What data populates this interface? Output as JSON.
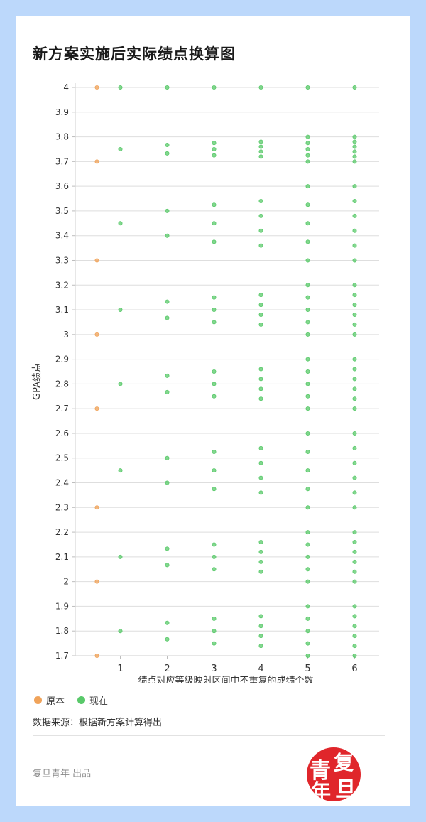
{
  "title": "新方案实施后实际绩点换算图",
  "source": "数据来源：根据新方案计算得出",
  "credit": "复旦青年 出品",
  "seal": {
    "chars": [
      "青",
      "复",
      "年",
      "旦"
    ]
  },
  "colors": {
    "original": "#f0a35a",
    "current": "#59c96a",
    "background": "#bcd8fb"
  },
  "legend": {
    "original_label": "原本",
    "current_label": "现在"
  },
  "chart_data": {
    "type": "scatter",
    "title": "新方案实施后实际绩点换算图",
    "xlabel": "绩点对应等级映射区间中不重复的成绩个数",
    "ylabel": "GPA绩点",
    "xlim": [
      0,
      6
    ],
    "ylim": [
      1.7,
      4.0
    ],
    "x_ticks": [
      1,
      2,
      3,
      4,
      5,
      6
    ],
    "y_ticks": [
      "4",
      "3.9",
      "3.8",
      "3.7",
      "3.6",
      "3.5",
      "3.4",
      "3.3",
      "3.2",
      "3.1",
      "3",
      "2.9",
      "2.8",
      "2.7",
      "2.6",
      "2.5",
      "2.4",
      "2.3",
      "2.2",
      "2.1",
      "2",
      "1.9",
      "1.8",
      "1.7"
    ],
    "grid": true,
    "legend_position": "bottom-left",
    "series": [
      {
        "name": "原本",
        "color": "#f0a35a",
        "points": [
          [
            0.5,
            4.0
          ],
          [
            0.5,
            3.7
          ],
          [
            0.5,
            3.3
          ],
          [
            0.5,
            3.0
          ],
          [
            0.5,
            2.7
          ],
          [
            0.5,
            2.3
          ],
          [
            0.5,
            2.0
          ],
          [
            0.5,
            1.7
          ]
        ]
      },
      {
        "name": "现在",
        "color": "#59c96a",
        "points": [
          [
            1,
            4.0
          ],
          [
            1,
            3.75
          ],
          [
            1,
            3.45
          ],
          [
            1,
            3.1
          ],
          [
            1,
            2.8
          ],
          [
            1,
            2.45
          ],
          [
            1,
            2.1
          ],
          [
            1,
            1.8
          ],
          [
            2,
            4.0
          ],
          [
            2,
            3.767
          ],
          [
            2,
            3.733
          ],
          [
            2,
            3.5
          ],
          [
            2,
            3.4
          ],
          [
            2,
            3.133
          ],
          [
            2,
            3.067
          ],
          [
            2,
            2.833
          ],
          [
            2,
            2.767
          ],
          [
            2,
            2.5
          ],
          [
            2,
            2.4
          ],
          [
            2,
            2.133
          ],
          [
            2,
            2.067
          ],
          [
            2,
            1.833
          ],
          [
            2,
            1.767
          ],
          [
            3,
            4.0
          ],
          [
            3,
            3.775
          ],
          [
            3,
            3.75
          ],
          [
            3,
            3.725
          ],
          [
            3,
            3.525
          ],
          [
            3,
            3.45
          ],
          [
            3,
            3.375
          ],
          [
            3,
            3.15
          ],
          [
            3,
            3.1
          ],
          [
            3,
            3.05
          ],
          [
            3,
            2.85
          ],
          [
            3,
            2.8
          ],
          [
            3,
            2.75
          ],
          [
            3,
            2.525
          ],
          [
            3,
            2.45
          ],
          [
            3,
            2.375
          ],
          [
            3,
            2.15
          ],
          [
            3,
            2.1
          ],
          [
            3,
            2.05
          ],
          [
            3,
            1.85
          ],
          [
            3,
            1.8
          ],
          [
            3,
            1.75
          ],
          [
            4,
            4.0
          ],
          [
            4,
            3.78
          ],
          [
            4,
            3.76
          ],
          [
            4,
            3.74
          ],
          [
            4,
            3.72
          ],
          [
            4,
            3.54
          ],
          [
            4,
            3.48
          ],
          [
            4,
            3.42
          ],
          [
            4,
            3.36
          ],
          [
            4,
            3.16
          ],
          [
            4,
            3.12
          ],
          [
            4,
            3.08
          ],
          [
            4,
            3.04
          ],
          [
            4,
            2.86
          ],
          [
            4,
            2.82
          ],
          [
            4,
            2.78
          ],
          [
            4,
            2.74
          ],
          [
            4,
            2.54
          ],
          [
            4,
            2.48
          ],
          [
            4,
            2.42
          ],
          [
            4,
            2.36
          ],
          [
            4,
            2.16
          ],
          [
            4,
            2.12
          ],
          [
            4,
            2.08
          ],
          [
            4,
            2.04
          ],
          [
            4,
            1.86
          ],
          [
            4,
            1.82
          ],
          [
            4,
            1.78
          ],
          [
            4,
            1.74
          ],
          [
            5,
            4.0
          ],
          [
            5,
            3.8
          ],
          [
            5,
            3.775
          ],
          [
            5,
            3.75
          ],
          [
            5,
            3.725
          ],
          [
            5,
            3.7
          ],
          [
            5,
            3.6
          ],
          [
            5,
            3.525
          ],
          [
            5,
            3.45
          ],
          [
            5,
            3.375
          ],
          [
            5,
            3.3
          ],
          [
            5,
            3.2
          ],
          [
            5,
            3.15
          ],
          [
            5,
            3.1
          ],
          [
            5,
            3.05
          ],
          [
            5,
            3.0
          ],
          [
            5,
            2.9
          ],
          [
            5,
            2.85
          ],
          [
            5,
            2.8
          ],
          [
            5,
            2.75
          ],
          [
            5,
            2.7
          ],
          [
            5,
            2.6
          ],
          [
            5,
            2.525
          ],
          [
            5,
            2.45
          ],
          [
            5,
            2.375
          ],
          [
            5,
            2.3
          ],
          [
            5,
            2.2
          ],
          [
            5,
            2.15
          ],
          [
            5,
            2.1
          ],
          [
            5,
            2.05
          ],
          [
            5,
            2.0
          ],
          [
            5,
            1.9
          ],
          [
            5,
            1.85
          ],
          [
            5,
            1.8
          ],
          [
            5,
            1.75
          ],
          [
            5,
            1.7
          ],
          [
            6,
            4.0
          ],
          [
            6,
            3.8
          ],
          [
            6,
            3.78
          ],
          [
            6,
            3.76
          ],
          [
            6,
            3.74
          ],
          [
            6,
            3.72
          ],
          [
            6,
            3.7
          ],
          [
            6,
            3.6
          ],
          [
            6,
            3.54
          ],
          [
            6,
            3.48
          ],
          [
            6,
            3.42
          ],
          [
            6,
            3.36
          ],
          [
            6,
            3.3
          ],
          [
            6,
            3.2
          ],
          [
            6,
            3.16
          ],
          [
            6,
            3.12
          ],
          [
            6,
            3.08
          ],
          [
            6,
            3.04
          ],
          [
            6,
            3.0
          ],
          [
            6,
            2.9
          ],
          [
            6,
            2.86
          ],
          [
            6,
            2.82
          ],
          [
            6,
            2.78
          ],
          [
            6,
            2.74
          ],
          [
            6,
            2.7
          ],
          [
            6,
            2.6
          ],
          [
            6,
            2.54
          ],
          [
            6,
            2.48
          ],
          [
            6,
            2.42
          ],
          [
            6,
            2.36
          ],
          [
            6,
            2.3
          ],
          [
            6,
            2.2
          ],
          [
            6,
            2.16
          ],
          [
            6,
            2.12
          ],
          [
            6,
            2.08
          ],
          [
            6,
            2.04
          ],
          [
            6,
            2.0
          ],
          [
            6,
            1.9
          ],
          [
            6,
            1.86
          ],
          [
            6,
            1.82
          ],
          [
            6,
            1.78
          ],
          [
            6,
            1.74
          ],
          [
            6,
            1.7
          ]
        ]
      }
    ]
  }
}
